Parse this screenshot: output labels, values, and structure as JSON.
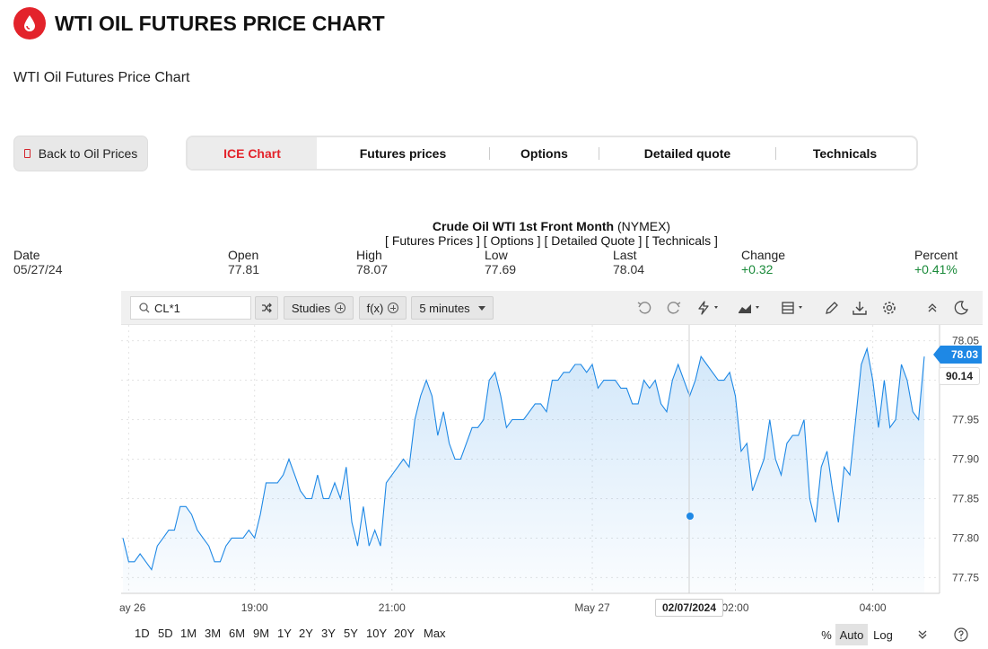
{
  "header": {
    "title": "WTI OIL FUTURES PRICE CHART",
    "logo_icon": "oil-drop-icon",
    "brand_color": "#e3232b"
  },
  "subtitle": "WTI Oil Futures Price Chart",
  "back_button": {
    "label": "Back to Oil Prices"
  },
  "tabs": [
    {
      "label": "ICE Chart",
      "active": true
    },
    {
      "label": "Futures prices",
      "active": false
    },
    {
      "label": "Options",
      "active": false
    },
    {
      "label": "Detailed quote",
      "active": false
    },
    {
      "label": "Technicals",
      "active": false
    }
  ],
  "instrument": {
    "name": "Crude Oil WTI 1st Front Month",
    "exchange": "(NYMEX)",
    "links": "[ Futures Prices ] [ Options ] [ Detailed Quote ] [ Technicals ]"
  },
  "quote": {
    "date_label": "Date",
    "date": "05/27/24",
    "open_label": "Open",
    "open": "77.81",
    "high_label": "High",
    "high": "78.07",
    "low_label": "Low",
    "low": "77.69",
    "last_label": "Last",
    "last": "78.04",
    "change_label": "Change",
    "change": "+0.32",
    "percent_label": "Percent",
    "percent": "+0.41%",
    "positive_color": "#1a8a3a"
  },
  "toolbar": {
    "symbol": "CL*1",
    "studies_label": "Studies",
    "fx_label": "f(x)",
    "interval_label": "5 minutes",
    "icons": [
      "undo-icon",
      "redo-icon",
      "lightning-icon",
      "chart-type-icon",
      "template-icon",
      "pencil-icon",
      "download-icon",
      "settings-icon",
      "collapse-icon",
      "dark-mode-icon"
    ]
  },
  "price_tag": "78.03",
  "crosshair_value": "90.14",
  "crosshair_date": "02/07/2024",
  "range_buttons": [
    "1D",
    "5D",
    "1M",
    "3M",
    "6M",
    "9M",
    "1Y",
    "2Y",
    "3Y",
    "5Y",
    "10Y",
    "20Y",
    "Max"
  ],
  "scale_buttons": {
    "percent": "%",
    "auto": "Auto",
    "log": "Log"
  },
  "chart_data": {
    "type": "area",
    "line_color": "#1e88e5",
    "ylim": [
      77.73,
      78.07
    ],
    "y_ticks": [
      "78.05",
      "78.00",
      "77.95",
      "77.90",
      "77.85",
      "77.80",
      "77.75"
    ],
    "y_tick_values": [
      78.05,
      78.0,
      77.95,
      77.9,
      77.85,
      77.8,
      77.75
    ],
    "x_tick_labels": [
      "ay 26",
      "19:00",
      "21:00",
      "May 27",
      "02:00",
      "04:00"
    ],
    "x_tick_index": [
      1,
      23,
      47,
      82,
      107,
      131
    ],
    "grid": true,
    "values": [
      77.8,
      77.77,
      77.77,
      77.78,
      77.77,
      77.76,
      77.79,
      77.8,
      77.81,
      77.81,
      77.84,
      77.84,
      77.83,
      77.81,
      77.8,
      77.79,
      77.77,
      77.77,
      77.79,
      77.8,
      77.8,
      77.8,
      77.81,
      77.8,
      77.83,
      77.87,
      77.87,
      77.87,
      77.88,
      77.9,
      77.88,
      77.86,
      77.85,
      77.85,
      77.88,
      77.85,
      77.85,
      77.87,
      77.85,
      77.89,
      77.82,
      77.79,
      77.84,
      77.79,
      77.81,
      77.79,
      77.87,
      77.88,
      77.89,
      77.9,
      77.89,
      77.95,
      77.98,
      78.0,
      77.98,
      77.93,
      77.96,
      77.92,
      77.9,
      77.9,
      77.92,
      77.94,
      77.94,
      77.95,
      78.0,
      78.01,
      77.98,
      77.94,
      77.95,
      77.95,
      77.95,
      77.96,
      77.97,
      77.97,
      77.96,
      78.0,
      78.0,
      78.01,
      78.01,
      78.02,
      78.02,
      78.01,
      78.02,
      77.99,
      78.0,
      78.0,
      78.0,
      77.99,
      77.99,
      77.97,
      77.97,
      78.0,
      77.99,
      78.0,
      77.97,
      77.96,
      78.0,
      78.02,
      78.0,
      77.98,
      78.0,
      78.03,
      78.02,
      78.01,
      78.0,
      78.0,
      78.01,
      77.98,
      77.91,
      77.92,
      77.86,
      77.88,
      77.9,
      77.95,
      77.9,
      77.88,
      77.92,
      77.93,
      77.93,
      77.95,
      77.85,
      77.82,
      77.89,
      77.91,
      77.86,
      77.82,
      77.89,
      77.88,
      77.95,
      78.02,
      78.04,
      78.0,
      77.94,
      78.0,
      77.94,
      77.95,
      78.02,
      78.0,
      77.96,
      77.95,
      78.03
    ]
  }
}
